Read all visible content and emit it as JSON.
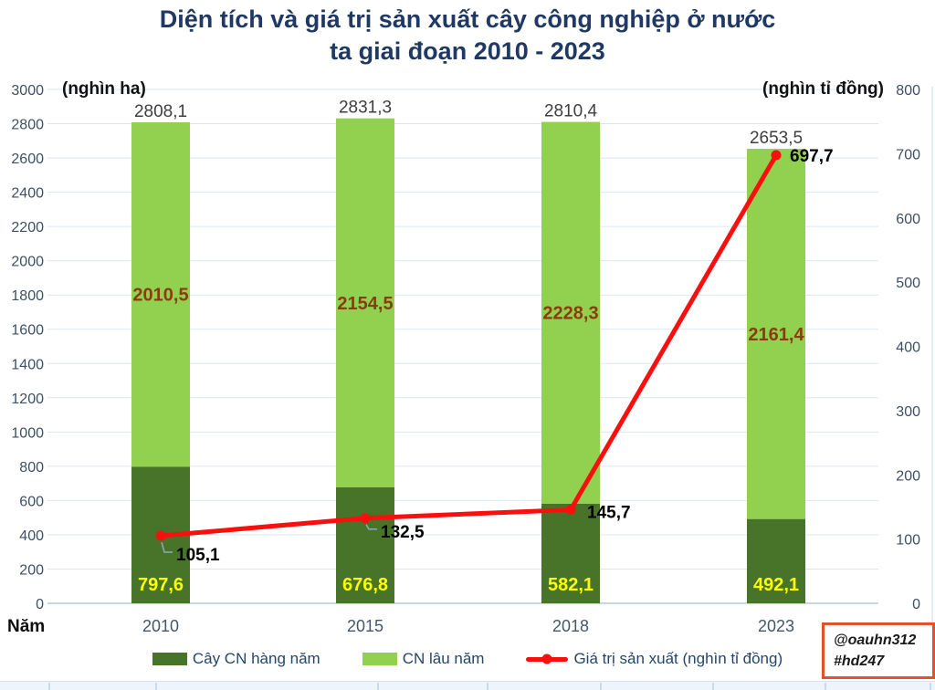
{
  "title": {
    "line1": "Diện tích và giá trị sản xuất cây công nghiệp ở nước",
    "line2": "ta giai đoạn 2010 - 2023"
  },
  "colors": {
    "title_text": "#1f3864",
    "tick_text": "#3d4f63",
    "grid": "#dbe5f1",
    "axis_line": "#b3c7df",
    "total_label": "#3f3f3f",
    "callout_label": "#000000",
    "leader": "#8fa8bf",
    "annual_bar": "#487429",
    "perennial_bar": "#92d050",
    "line": "#fa0f0f",
    "annual_label": "#ffff00",
    "perennial_label": "#8a3c0c",
    "watermark_border": "#e0532a"
  },
  "legend": {
    "items": [
      {
        "label": "Cây CN hàng năm",
        "marker": "swatch",
        "color": "#487429"
      },
      {
        "label": "CN lâu năm",
        "marker": "swatch",
        "color": "#92d050"
      },
      {
        "label": "Giá trị sản xuất (nghìn tỉ đồng)",
        "marker": "line-dot",
        "color": "#fa0f0f"
      }
    ]
  },
  "watermark": {
    "line1": "@oauhn312",
    "line2": "#hd247"
  },
  "chart_data": {
    "type": "bar",
    "subtype": "stacked-bars-with-line-combo",
    "title": "Diện tích và giá trị sản xuất cây công nghiệp ở nước ta giai đoạn 2010 - 2023",
    "categories": [
      "2010",
      "2015",
      "2018",
      "2023"
    ],
    "series": [
      {
        "name": "Cây CN hàng năm",
        "type": "bar",
        "stacked": true,
        "axis": "left",
        "color": "#487429",
        "label_color": "#ffff00",
        "values": [
          797.6,
          676.8,
          582.1,
          492.1
        ],
        "labels": [
          "797,6",
          "676,8",
          "582,1",
          "492,1"
        ]
      },
      {
        "name": "CN lâu năm",
        "type": "bar",
        "stacked": true,
        "axis": "left",
        "color": "#92d050",
        "label_color": "#8a3c0c",
        "values": [
          2010.5,
          2154.5,
          2228.3,
          2161.4
        ],
        "labels": [
          "2010,5",
          "2154,5",
          "2228,3",
          "2161,4"
        ]
      },
      {
        "name": "Giá trị sản xuất (nghìn tỉ đồng)",
        "type": "line",
        "axis": "right",
        "color": "#fa0f0f",
        "values": [
          105.1,
          132.5,
          145.7,
          697.7
        ],
        "labels": [
          "105,1",
          "132,5",
          "145,7",
          "697,7"
        ]
      }
    ],
    "totals": {
      "values": [
        2808.1,
        2831.3,
        2810.4,
        2653.5
      ],
      "labels": [
        "2808,1",
        "2831,3",
        "2810,4",
        "2653,5"
      ]
    },
    "left_axis": {
      "title": "(nghìn ha)",
      "min": 0,
      "max": 3000,
      "step": 200,
      "ticks": [
        0,
        200,
        400,
        600,
        800,
        1000,
        1200,
        1400,
        1600,
        1800,
        2000,
        2200,
        2400,
        2600,
        2800,
        3000
      ]
    },
    "right_axis": {
      "title": "(nghìn tỉ đồng)",
      "min": 0,
      "max": 800,
      "step": 100,
      "ticks": [
        0,
        100,
        200,
        300,
        400,
        500,
        600,
        700,
        800
      ]
    },
    "x_axis": {
      "title": "Năm"
    },
    "grid": true,
    "legend_position": "bottom"
  }
}
